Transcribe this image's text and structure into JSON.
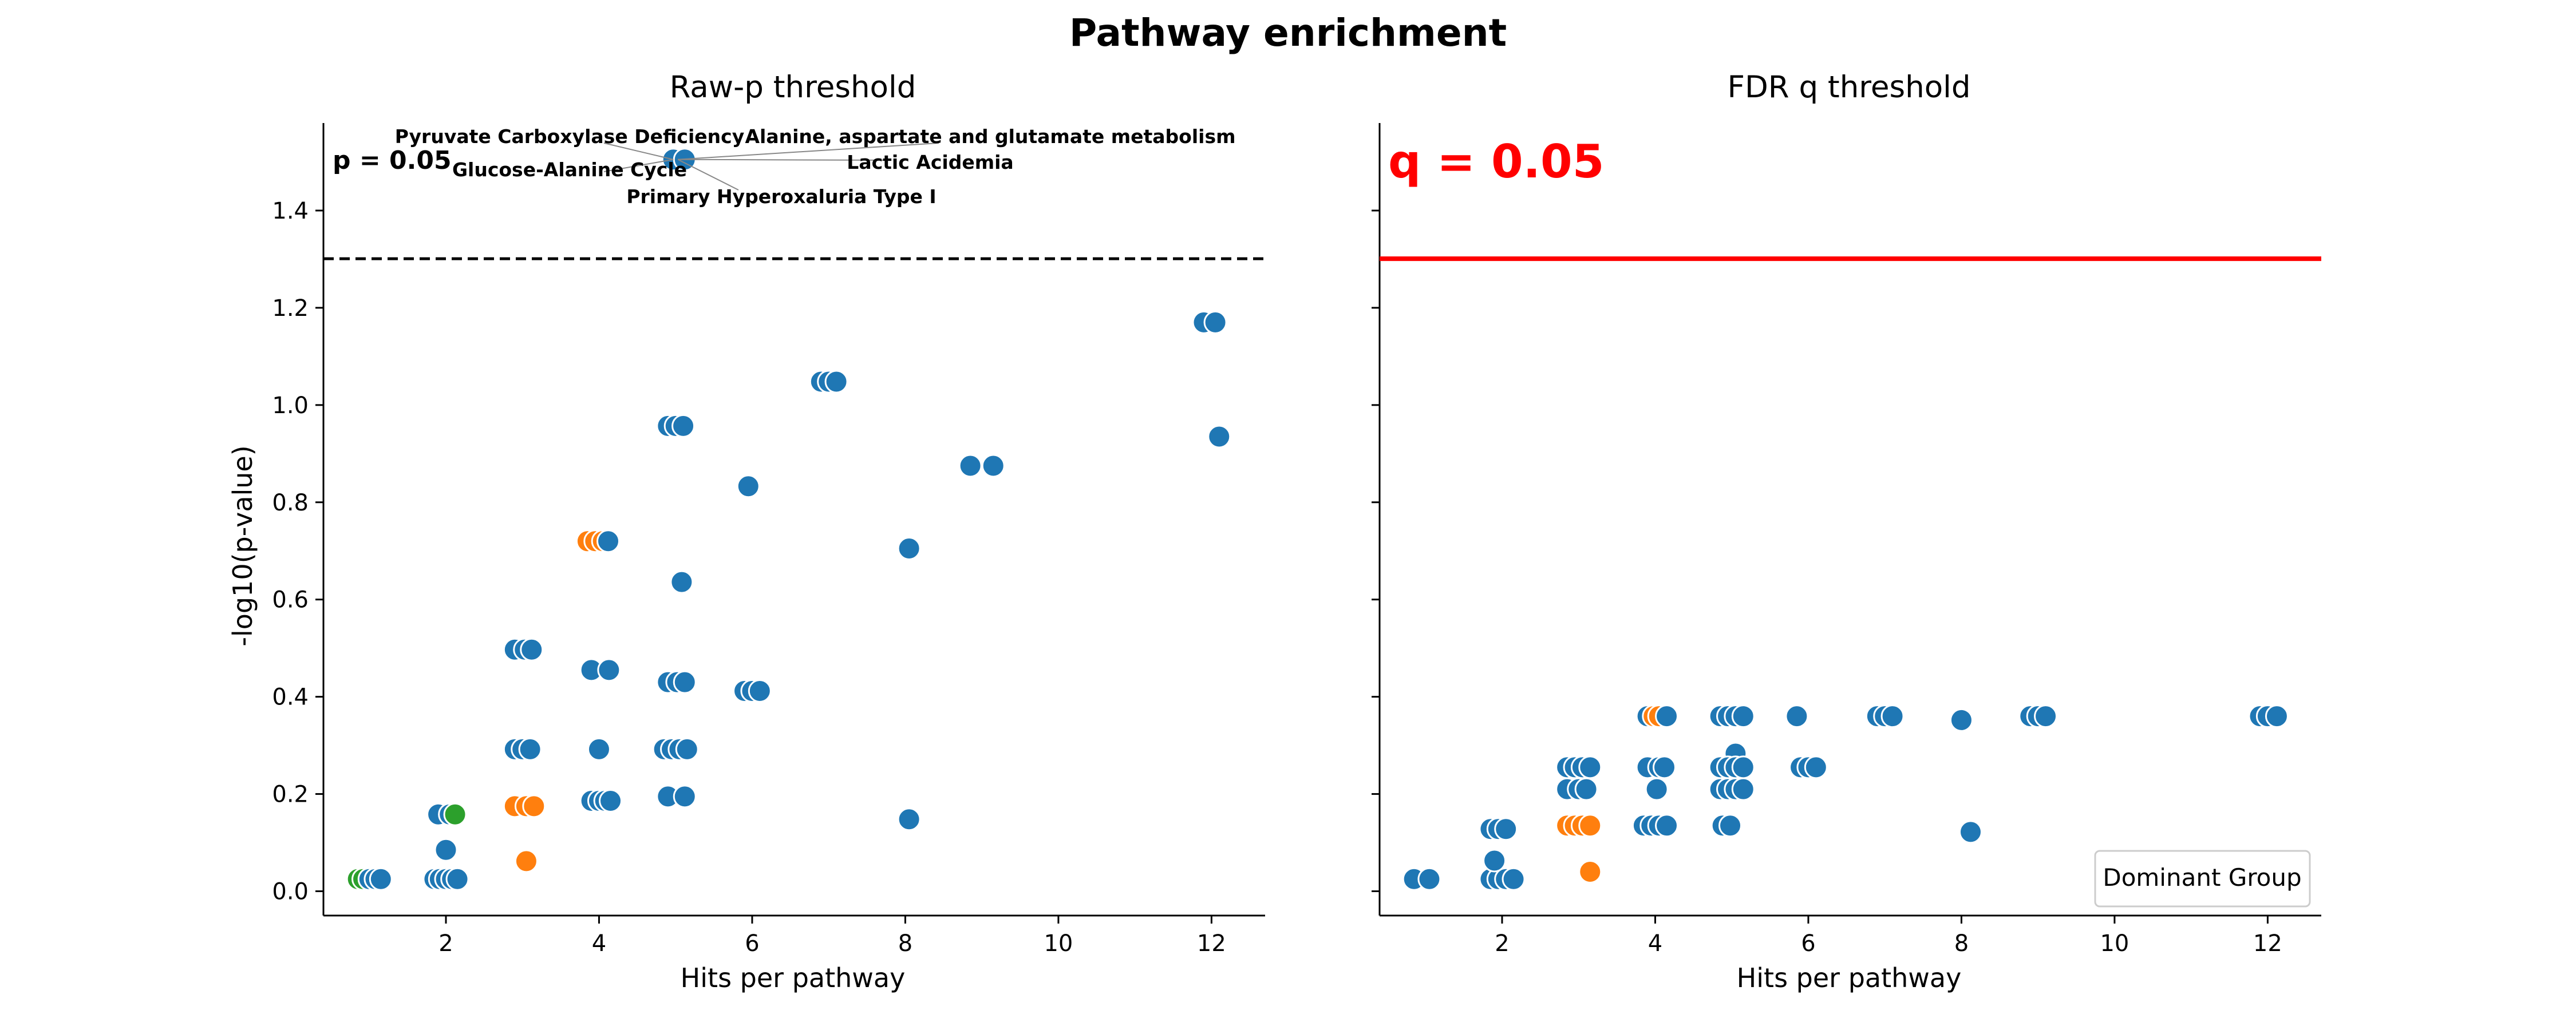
{
  "title": "Pathway enrichment",
  "colors": {
    "blue": "#1f77b4",
    "orange": "#ff7f0e",
    "green": "#2ca02c",
    "threshold_q": "#ff0000",
    "threshold_p": "#000000"
  },
  "chart_data": [
    {
      "type": "scatter",
      "title": "Raw-p threshold",
      "xlabel": "Hits per pathway",
      "ylabel": "-log10(p-value)",
      "xlim": [
        0.4,
        12.7
      ],
      "ylim": [
        -0.05,
        1.58
      ],
      "xticks": [
        2,
        4,
        6,
        8,
        10,
        12
      ],
      "yticks": [
        0.0,
        0.2,
        0.4,
        0.6,
        0.8,
        1.0,
        1.2,
        1.4
      ],
      "ytick_labels": [
        "0.0",
        "0.2",
        "0.4",
        "0.6",
        "0.8",
        "1.0",
        "1.2",
        "1.4"
      ],
      "threshold": {
        "y": 1.301,
        "style": "dashed",
        "color": "#000000",
        "label": "p = 0.05"
      },
      "annotations": [
        {
          "text": "Pyruvate Carboxylase Deficiency",
          "target": [
            4.97,
            1.505
          ]
        },
        {
          "text": "Glucose-Alanine Cycle",
          "target": [
            4.97,
            1.505
          ]
        },
        {
          "text": "Primary Hyperoxaluria Type I",
          "target": [
            5.03,
            1.505
          ]
        },
        {
          "text": "Alanine, aspartate and glutamate metabolism",
          "target": [
            5.03,
            1.505
          ]
        },
        {
          "text": "Lactic Acidemia",
          "target": [
            5.03,
            1.505
          ]
        }
      ],
      "points": [
        [
          0.85,
          0.025,
          "green"
        ],
        [
          0.92,
          0.025,
          "green"
        ],
        [
          1.0,
          0.025,
          "blue"
        ],
        [
          1.08,
          0.025,
          "blue"
        ],
        [
          1.15,
          0.025,
          "blue"
        ],
        [
          1.85,
          0.025,
          "blue"
        ],
        [
          1.92,
          0.025,
          "blue"
        ],
        [
          2.0,
          0.025,
          "blue"
        ],
        [
          2.08,
          0.025,
          "blue"
        ],
        [
          2.15,
          0.025,
          "blue"
        ],
        [
          2.0,
          0.085,
          "blue"
        ],
        [
          1.9,
          0.158,
          "blue"
        ],
        [
          2.05,
          0.158,
          "blue"
        ],
        [
          2.12,
          0.158,
          "green"
        ],
        [
          2.9,
          0.175,
          "orange"
        ],
        [
          3.05,
          0.175,
          "orange"
        ],
        [
          3.15,
          0.175,
          "orange"
        ],
        [
          3.05,
          0.062,
          "orange"
        ],
        [
          2.9,
          0.292,
          "blue"
        ],
        [
          3.0,
          0.292,
          "blue"
        ],
        [
          3.1,
          0.292,
          "blue"
        ],
        [
          2.9,
          0.497,
          "blue"
        ],
        [
          3.03,
          0.497,
          "blue"
        ],
        [
          3.12,
          0.497,
          "blue"
        ],
        [
          3.85,
          0.72,
          "orange"
        ],
        [
          3.95,
          0.72,
          "orange"
        ],
        [
          4.05,
          0.72,
          "orange"
        ],
        [
          4.12,
          0.72,
          "blue"
        ],
        [
          3.9,
          0.455,
          "blue"
        ],
        [
          4.13,
          0.455,
          "blue"
        ],
        [
          4.0,
          0.292,
          "blue"
        ],
        [
          3.9,
          0.186,
          "blue"
        ],
        [
          4.0,
          0.186,
          "blue"
        ],
        [
          4.08,
          0.186,
          "blue"
        ],
        [
          4.15,
          0.186,
          "blue"
        ],
        [
          4.9,
          0.957,
          "blue"
        ],
        [
          5.0,
          0.957,
          "blue"
        ],
        [
          5.1,
          0.957,
          "blue"
        ],
        [
          5.08,
          0.636,
          "blue"
        ],
        [
          4.9,
          0.43,
          "blue"
        ],
        [
          5.02,
          0.43,
          "blue"
        ],
        [
          5.12,
          0.43,
          "blue"
        ],
        [
          4.85,
          0.292,
          "blue"
        ],
        [
          4.95,
          0.292,
          "blue"
        ],
        [
          5.05,
          0.292,
          "blue"
        ],
        [
          5.15,
          0.292,
          "blue"
        ],
        [
          4.9,
          0.195,
          "blue"
        ],
        [
          5.12,
          0.195,
          "blue"
        ],
        [
          4.97,
          1.505,
          "blue"
        ],
        [
          5.12,
          1.505,
          "blue"
        ],
        [
          5.95,
          0.833,
          "blue"
        ],
        [
          5.9,
          0.412,
          "blue"
        ],
        [
          6.0,
          0.412,
          "blue"
        ],
        [
          6.1,
          0.412,
          "blue"
        ],
        [
          6.9,
          1.048,
          "blue"
        ],
        [
          7.0,
          1.048,
          "blue"
        ],
        [
          7.1,
          1.048,
          "blue"
        ],
        [
          8.05,
          0.705,
          "blue"
        ],
        [
          8.05,
          0.148,
          "blue"
        ],
        [
          8.85,
          0.875,
          "blue"
        ],
        [
          9.15,
          0.875,
          "blue"
        ],
        [
          11.9,
          1.17,
          "blue"
        ],
        [
          12.05,
          1.17,
          "blue"
        ],
        [
          12.1,
          0.935,
          "blue"
        ]
      ]
    },
    {
      "type": "scatter",
      "title": "FDR q threshold",
      "xlabel": "Hits per pathway",
      "ylabel": "",
      "xlim": [
        0.4,
        12.7
      ],
      "ylim": [
        -0.05,
        1.58
      ],
      "xticks": [
        2,
        4,
        6,
        8,
        10,
        12
      ],
      "yticks": [
        0.0,
        0.2,
        0.4,
        0.6,
        0.8,
        1.0,
        1.2,
        1.4
      ],
      "ytick_labels": [],
      "threshold": {
        "y": 1.301,
        "style": "solid",
        "color": "#ff0000",
        "label": "q = 0.05"
      },
      "legend": {
        "title": "Dominant Group",
        "placement": "lower-right"
      },
      "annotations": [],
      "points": [
        [
          0.85,
          0.025,
          "blue"
        ],
        [
          1.05,
          0.025,
          "blue"
        ],
        [
          1.85,
          0.025,
          "blue"
        ],
        [
          1.95,
          0.025,
          "blue"
        ],
        [
          2.05,
          0.025,
          "blue"
        ],
        [
          2.15,
          0.025,
          "blue"
        ],
        [
          1.9,
          0.063,
          "blue"
        ],
        [
          1.85,
          0.128,
          "blue"
        ],
        [
          1.95,
          0.128,
          "blue"
        ],
        [
          2.05,
          0.128,
          "blue"
        ],
        [
          2.85,
          0.135,
          "orange"
        ],
        [
          2.95,
          0.135,
          "orange"
        ],
        [
          3.05,
          0.135,
          "orange"
        ],
        [
          3.15,
          0.135,
          "orange"
        ],
        [
          3.15,
          0.04,
          "orange"
        ],
        [
          2.85,
          0.21,
          "blue"
        ],
        [
          3.0,
          0.21,
          "blue"
        ],
        [
          3.1,
          0.21,
          "blue"
        ],
        [
          2.85,
          0.255,
          "blue"
        ],
        [
          2.95,
          0.255,
          "blue"
        ],
        [
          3.05,
          0.255,
          "blue"
        ],
        [
          3.15,
          0.255,
          "blue"
        ],
        [
          3.9,
          0.36,
          "blue"
        ],
        [
          3.98,
          0.36,
          "orange"
        ],
        [
          4.05,
          0.36,
          "orange"
        ],
        [
          4.15,
          0.36,
          "blue"
        ],
        [
          3.9,
          0.255,
          "blue"
        ],
        [
          4.05,
          0.255,
          "blue"
        ],
        [
          4.12,
          0.255,
          "blue"
        ],
        [
          4.02,
          0.21,
          "blue"
        ],
        [
          3.85,
          0.135,
          "blue"
        ],
        [
          3.95,
          0.135,
          "blue"
        ],
        [
          4.05,
          0.135,
          "blue"
        ],
        [
          4.15,
          0.135,
          "blue"
        ],
        [
          4.85,
          0.36,
          "blue"
        ],
        [
          4.95,
          0.36,
          "blue"
        ],
        [
          5.05,
          0.36,
          "blue"
        ],
        [
          5.15,
          0.36,
          "blue"
        ],
        [
          5.05,
          0.283,
          "blue"
        ],
        [
          4.85,
          0.255,
          "blue"
        ],
        [
          4.95,
          0.255,
          "blue"
        ],
        [
          5.05,
          0.255,
          "blue"
        ],
        [
          5.15,
          0.255,
          "blue"
        ],
        [
          4.85,
          0.21,
          "blue"
        ],
        [
          4.95,
          0.21,
          "blue"
        ],
        [
          5.05,
          0.21,
          "blue"
        ],
        [
          5.15,
          0.21,
          "blue"
        ],
        [
          4.88,
          0.135,
          "blue"
        ],
        [
          4.98,
          0.135,
          "blue"
        ],
        [
          5.85,
          0.36,
          "blue"
        ],
        [
          5.9,
          0.255,
          "blue"
        ],
        [
          6.0,
          0.255,
          "blue"
        ],
        [
          6.1,
          0.255,
          "blue"
        ],
        [
          6.9,
          0.36,
          "blue"
        ],
        [
          7.0,
          0.36,
          "blue"
        ],
        [
          7.1,
          0.36,
          "blue"
        ],
        [
          8.0,
          0.352,
          "blue"
        ],
        [
          8.12,
          0.122,
          "blue"
        ],
        [
          8.9,
          0.36,
          "blue"
        ],
        [
          9.0,
          0.36,
          "blue"
        ],
        [
          9.1,
          0.36,
          "blue"
        ],
        [
          11.9,
          0.36,
          "blue"
        ],
        [
          12.0,
          0.36,
          "blue"
        ],
        [
          12.12,
          0.36,
          "blue"
        ]
      ]
    }
  ]
}
